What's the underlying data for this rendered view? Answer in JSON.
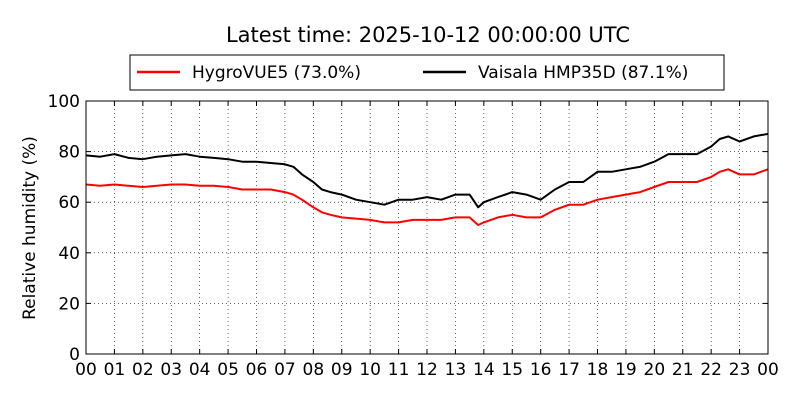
{
  "chart_data": {
    "type": "line",
    "title": "Latest time: 2025-10-12 00:00:00 UTC",
    "xlabel": "",
    "ylabel": "Relative humidity (%)",
    "xlim": [
      0,
      24
    ],
    "ylim": [
      0,
      100
    ],
    "grid": true,
    "legend_position": "top-center",
    "x_ticks": [
      0,
      1,
      2,
      3,
      4,
      5,
      6,
      7,
      8,
      9,
      10,
      11,
      12,
      13,
      14,
      15,
      16,
      17,
      18,
      19,
      20,
      21,
      22,
      23,
      24
    ],
    "x_tick_labels": [
      "00",
      "01",
      "02",
      "03",
      "04",
      "05",
      "06",
      "07",
      "08",
      "09",
      "10",
      "11",
      "12",
      "13",
      "14",
      "15",
      "16",
      "17",
      "18",
      "19",
      "20",
      "21",
      "22",
      "23",
      "00"
    ],
    "y_ticks": [
      0,
      20,
      40,
      60,
      80,
      100
    ],
    "y_tick_labels": [
      "0",
      "20",
      "40",
      "60",
      "80",
      "100"
    ],
    "series": [
      {
        "name": "HygroVUE5 (73.0%)",
        "color": "#ff0000",
        "x": [
          0,
          0.5,
          1,
          1.5,
          2,
          2.5,
          3,
          3.5,
          4,
          4.5,
          5,
          5.5,
          6,
          6.5,
          7,
          7.3,
          7.6,
          8,
          8.3,
          8.6,
          9,
          9.5,
          10,
          10.5,
          11,
          11.5,
          12,
          12.5,
          13,
          13.5,
          13.8,
          14,
          14.5,
          15,
          15.5,
          16,
          16.5,
          17,
          17.5,
          18,
          18.5,
          19,
          19.5,
          20,
          20.5,
          21,
          21.5,
          22,
          22.3,
          22.6,
          23,
          23.5,
          24
        ],
        "y": [
          67,
          66.5,
          67,
          66.5,
          66,
          66.5,
          67,
          67,
          66.5,
          66.5,
          66,
          65,
          65,
          65,
          64,
          63,
          61,
          58,
          56,
          55,
          54,
          53.5,
          53,
          52,
          52,
          53,
          53,
          53,
          54,
          54,
          51,
          52,
          54,
          55,
          54,
          54,
          57,
          59,
          59,
          61,
          62,
          63,
          64,
          66,
          68,
          68,
          68,
          70,
          72,
          73,
          71,
          71,
          73
        ]
      },
      {
        "name": "Vaisala HMP35D (87.1%)",
        "color": "#000000",
        "x": [
          0,
          0.5,
          1,
          1.5,
          2,
          2.5,
          3,
          3.5,
          4,
          4.5,
          5,
          5.5,
          6,
          6.5,
          7,
          7.3,
          7.6,
          8,
          8.3,
          8.6,
          9,
          9.5,
          10,
          10.5,
          11,
          11.5,
          12,
          12.5,
          13,
          13.5,
          13.8,
          14,
          14.5,
          15,
          15.5,
          16,
          16.5,
          17,
          17.5,
          18,
          18.5,
          19,
          19.5,
          20,
          20.5,
          21,
          21.5,
          22,
          22.3,
          22.6,
          23,
          23.5,
          24
        ],
        "y": [
          78.5,
          78,
          79,
          77.5,
          77,
          78,
          78.5,
          79,
          78,
          77.5,
          77,
          76,
          76,
          75.5,
          75,
          74,
          71,
          68,
          65,
          64,
          63,
          61,
          60,
          59,
          61,
          61,
          62,
          61,
          63,
          63,
          58,
          60,
          62,
          64,
          63,
          61,
          65,
          68,
          68,
          72,
          72,
          73,
          74,
          76,
          79,
          79,
          79,
          82,
          85,
          86,
          84,
          86,
          87
        ]
      }
    ]
  }
}
